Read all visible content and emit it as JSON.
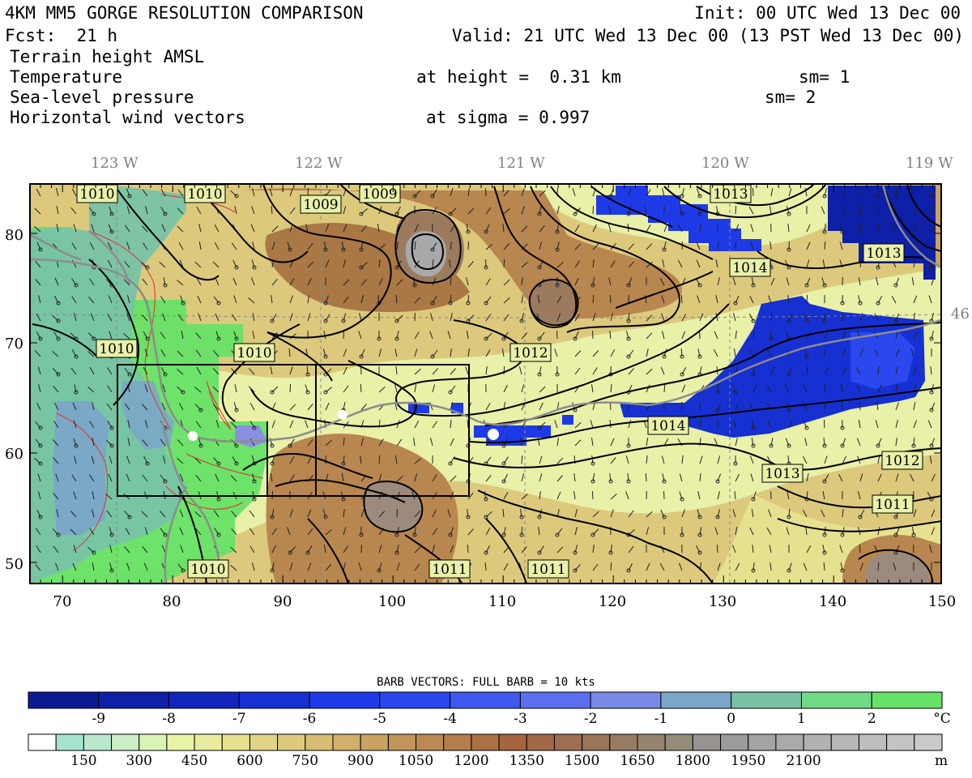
{
  "header": {
    "title": "4KM MM5 GORGE RESOLUTION COMPARISON",
    "init": "Init: 00 UTC Wed 13 Dec 00",
    "fcst": "Fcst:  21 h",
    "valid": "Valid: 21 UTC Wed 13 Dec 00 (13 PST Wed 13 Dec 00)",
    "fields": [
      {
        "name": "Terrain height AMSL",
        "level": "",
        "sm": ""
      },
      {
        "name": "Temperature",
        "level": "at height =  0.31 km",
        "sm": "sm= 1"
      },
      {
        "name": "Sea-level pressure",
        "level": "",
        "sm": "sm= 2"
      },
      {
        "name": "Horizontal wind vectors",
        "level": "at sigma = 0.997",
        "sm": ""
      }
    ]
  },
  "map": {
    "lon_labels": [
      "123 W",
      "122 W",
      "121 W",
      "120 W",
      "119 W"
    ],
    "lat_right_label": "46",
    "x_ticks": [
      "70",
      "80",
      "90",
      "100",
      "110",
      "120",
      "130",
      "140",
      "150"
    ],
    "y_ticks": [
      "50",
      "60",
      "70",
      "80"
    ],
    "pressure_labels": [
      {
        "text": "1010",
        "x": 120,
        "y": 239
      },
      {
        "text": "1010",
        "x": 253,
        "y": 239
      },
      {
        "text": "1009",
        "x": 396,
        "y": 252
      },
      {
        "text": "1009",
        "x": 469,
        "y": 239
      },
      {
        "text": "1013",
        "x": 902,
        "y": 239
      },
      {
        "text": "1013",
        "x": 1091,
        "y": 312
      },
      {
        "text": "1014",
        "x": 926,
        "y": 330
      },
      {
        "text": "1010",
        "x": 144,
        "y": 430
      },
      {
        "text": "1010",
        "x": 314,
        "y": 435
      },
      {
        "text": "1012",
        "x": 655,
        "y": 435
      },
      {
        "text": "1014",
        "x": 825,
        "y": 525
      },
      {
        "text": "1013",
        "x": 966,
        "y": 584
      },
      {
        "text": "1012",
        "x": 1114,
        "y": 568
      },
      {
        "text": "1011",
        "x": 1102,
        "y": 622
      },
      {
        "text": "1010",
        "x": 257,
        "y": 702
      },
      {
        "text": "1011",
        "x": 555,
        "y": 702
      },
      {
        "text": "1011",
        "x": 677,
        "y": 702
      }
    ]
  },
  "legend": {
    "barb_title": "BARB VECTORS:  FULL BARB = 10 kts",
    "temp": {
      "colors": [
        "#0b1a94",
        "#0e1fa8",
        "#1226bd",
        "#1630d2",
        "#1e3ae6",
        "#2b47ee",
        "#3f58ef",
        "#5a6fee",
        "#7a88e6",
        "#7ba6c8",
        "#78c3a6",
        "#6fdb86",
        "#66e266"
      ],
      "labels": [
        "-9",
        "-8",
        "-7",
        "-6",
        "-5",
        "-4",
        "-3",
        "-2",
        "-1",
        "0",
        "1",
        "2"
      ],
      "unit": "°C"
    },
    "terrain": {
      "colors": [
        "#ffffff",
        "#a6e3cf",
        "#b8e8cc",
        "#cbeec4",
        "#dcf3b8",
        "#e8f3a8",
        "#e9ec9c",
        "#e6e18f",
        "#e1d585",
        "#dcc97c",
        "#d6bd72",
        "#d0b06a",
        "#c9a362",
        "#c2965a",
        "#bb8a52",
        "#b47d4b",
        "#ac7045",
        "#a46540",
        "#a16947",
        "#9d6e50",
        "#9a7559",
        "#977c64",
        "#95846f",
        "#948c7b",
        "#969390",
        "#9b9b9b",
        "#a3a3a3",
        "#aaaaaa",
        "#b1b1b1",
        "#b8b8b8",
        "#bebebe",
        "#c4c4c4",
        "#cacaca"
      ],
      "labels": [
        "150",
        "300",
        "450",
        "600",
        "750",
        "900",
        "1050",
        "1200",
        "1350",
        "1500",
        "1650",
        "1800",
        "1950",
        "2100"
      ],
      "unit": "m"
    }
  }
}
